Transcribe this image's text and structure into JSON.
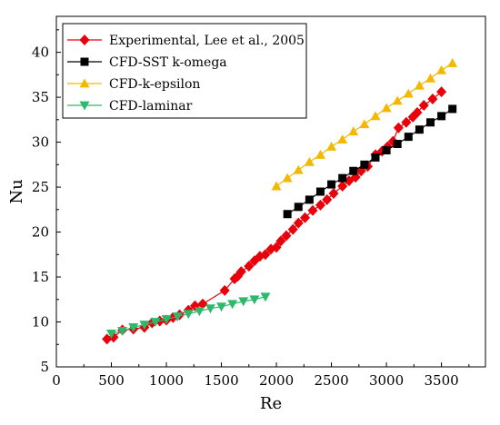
{
  "chart_data": {
    "type": "line",
    "xlabel": "Re",
    "ylabel": "Nu",
    "xlim": [
      0,
      3900
    ],
    "ylim": [
      5,
      44
    ],
    "xticks": [
      0,
      500,
      1000,
      1500,
      2000,
      2500,
      3000,
      3500
    ],
    "yticks": [
      5,
      10,
      15,
      20,
      25,
      30,
      35,
      40
    ],
    "grid": false,
    "legend_position": "top-left",
    "series": [
      {
        "name": "Experimental, Lee et al., 2005",
        "marker": "diamond",
        "color": "#e8000b",
        "line": true,
        "x": [
          460,
          520,
          600,
          700,
          800,
          870,
          940,
          1000,
          1060,
          1120,
          1200,
          1260,
          1330,
          1530,
          1620,
          1650,
          1680,
          1750,
          1800,
          1850,
          1900,
          1950,
          2000,
          2040,
          2090,
          2150,
          2200,
          2260,
          2330,
          2400,
          2460,
          2520,
          2600,
          2660,
          2720,
          2770,
          2830,
          2900,
          2960,
          3010,
          3060,
          3110,
          3180,
          3240,
          3280,
          3340,
          3420,
          3500
        ],
        "y": [
          8.1,
          8.3,
          9.1,
          9.2,
          9.4,
          9.9,
          10.1,
          10.2,
          10.5,
          10.8,
          11.3,
          11.8,
          12.0,
          13.5,
          14.8,
          15.1,
          15.6,
          16.2,
          16.8,
          17.3,
          17.5,
          18.1,
          18.3,
          19.0,
          19.6,
          20.3,
          21.0,
          21.6,
          22.4,
          23.0,
          23.6,
          24.3,
          25.1,
          25.7,
          26.1,
          26.8,
          27.3,
          28.6,
          29.0,
          29.5,
          30.1,
          31.6,
          32.2,
          32.8,
          33.3,
          34.1,
          34.8,
          35.6
        ]
      },
      {
        "name": "CFD-SST k-omega",
        "marker": "square",
        "color": "#000000",
        "line": true,
        "x": [
          2100,
          2200,
          2300,
          2400,
          2500,
          2600,
          2700,
          2800,
          2900,
          3000,
          3100,
          3200,
          3300,
          3400,
          3500,
          3600
        ],
        "y": [
          22.0,
          22.8,
          23.6,
          24.5,
          25.3,
          26.0,
          26.8,
          27.5,
          28.3,
          29.1,
          29.8,
          30.6,
          31.4,
          32.2,
          32.9,
          33.7
        ]
      },
      {
        "name": "CFD-k-epsilon",
        "marker": "triangle-up",
        "color": "#f5b800",
        "line": true,
        "x": [
          2000,
          2100,
          2200,
          2300,
          2400,
          2500,
          2600,
          2700,
          2800,
          2900,
          3000,
          3100,
          3200,
          3300,
          3400,
          3500,
          3600
        ],
        "y": [
          25.1,
          26.0,
          26.9,
          27.8,
          28.6,
          29.5,
          30.3,
          31.2,
          32.0,
          32.9,
          33.8,
          34.6,
          35.4,
          36.3,
          37.1,
          38.0,
          38.8
        ]
      },
      {
        "name": "CFD-laminar",
        "marker": "triangle-down",
        "color": "#2eb86b",
        "line": true,
        "x": [
          500,
          600,
          700,
          800,
          900,
          1000,
          1100,
          1200,
          1300,
          1400,
          1500,
          1600,
          1700,
          1800,
          1900
        ],
        "y": [
          8.7,
          9.0,
          9.4,
          9.7,
          10.0,
          10.3,
          10.6,
          10.9,
          11.2,
          11.5,
          11.7,
          12.0,
          12.3,
          12.5,
          12.8
        ]
      }
    ]
  }
}
